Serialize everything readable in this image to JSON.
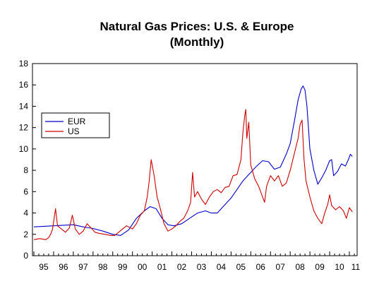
{
  "chart_data": {
    "type": "line",
    "title": "Natural Gas Prices: U.S. & Europe",
    "subtitle": "(Monthly)",
    "xlabel": "",
    "ylabel": "",
    "ylim": [
      0,
      18
    ],
    "yticks": [
      "0",
      "2",
      "4",
      "6",
      "8",
      "10",
      "12",
      "14",
      "16",
      "18"
    ],
    "xlim": [
      1995.0,
      2011.25
    ],
    "xticks": [
      "95",
      "96",
      "97",
      "98",
      "99",
      "00",
      "01",
      "02",
      "03",
      "04",
      "05",
      "06",
      "07",
      "08",
      "09",
      "10",
      "11"
    ],
    "legend_position": "left",
    "grid": false,
    "series": [
      {
        "name": "EUR",
        "color": "#0000cc",
        "x": [
          1995.0,
          1995.5,
          1996.0,
          1996.5,
          1997.0,
          1997.5,
          1998.0,
          1998.5,
          1999.0,
          1999.4,
          1999.8,
          2000.2,
          2000.6,
          2000.9,
          2001.2,
          2001.5,
          2001.8,
          2002.1,
          2002.5,
          2002.9,
          2003.3,
          2003.7,
          2004.0,
          2004.3,
          2004.6,
          2005.0,
          2005.3,
          2005.6,
          2006.0,
          2006.3,
          2006.6,
          2006.9,
          2007.2,
          2007.5,
          2007.8,
          2008.0,
          2008.2,
          2008.4,
          2008.55,
          2008.65,
          2008.75,
          2008.85,
          2009.0,
          2009.2,
          2009.4,
          2009.6,
          2009.8,
          2010.0,
          2010.1,
          2010.2,
          2010.4,
          2010.6,
          2010.8,
          2010.95,
          2011.05,
          2011.15
        ],
        "y": [
          2.7,
          2.75,
          2.8,
          2.85,
          2.9,
          2.7,
          2.55,
          2.3,
          2.0,
          1.9,
          2.4,
          3.5,
          4.2,
          4.6,
          4.4,
          3.5,
          2.9,
          2.8,
          3.0,
          3.5,
          4.0,
          4.2,
          4.0,
          4.0,
          4.6,
          5.4,
          6.2,
          7.0,
          7.8,
          8.4,
          8.9,
          8.8,
          8.1,
          8.3,
          9.5,
          10.5,
          12.5,
          14.6,
          15.6,
          15.9,
          15.5,
          14.0,
          10.0,
          8.0,
          6.7,
          7.3,
          8.0,
          8.9,
          9.0,
          7.5,
          7.9,
          8.6,
          8.4,
          9.0,
          9.5,
          9.3
        ]
      },
      {
        "name": "US",
        "color": "#cc0000",
        "x": [
          1995.0,
          1995.3,
          1995.6,
          1995.75,
          1995.85,
          1995.95,
          1996.1,
          1996.2,
          1996.4,
          1996.6,
          1996.8,
          1996.95,
          1997.1,
          1997.3,
          1997.5,
          1997.7,
          1997.9,
          1998.1,
          1998.3,
          1998.6,
          1998.9,
          1999.1,
          1999.3,
          1999.5,
          1999.7,
          2000.0,
          2000.2,
          2000.4,
          2000.6,
          2000.75,
          2000.85,
          2000.95,
          2001.1,
          2001.25,
          2001.4,
          2001.6,
          2001.8,
          2002.0,
          2002.2,
          2002.4,
          2002.6,
          2002.8,
          2002.95,
          2003.05,
          2003.15,
          2003.3,
          2003.5,
          2003.7,
          2003.9,
          2004.1,
          2004.3,
          2004.5,
          2004.7,
          2004.9,
          2005.1,
          2005.3,
          2005.5,
          2005.6,
          2005.7,
          2005.75,
          2005.8,
          2005.9,
          2006.0,
          2006.2,
          2006.4,
          2006.6,
          2006.7,
          2006.8,
          2007.0,
          2007.2,
          2007.4,
          2007.6,
          2007.8,
          2008.0,
          2008.2,
          2008.4,
          2008.5,
          2008.6,
          2008.7,
          2008.8,
          2009.0,
          2009.2,
          2009.4,
          2009.6,
          2009.75,
          2009.9,
          2010.0,
          2010.1,
          2010.3,
          2010.5,
          2010.7,
          2010.85,
          2011.0,
          2011.15
        ],
        "y": [
          1.5,
          1.6,
          1.5,
          1.7,
          2.0,
          2.5,
          4.4,
          2.8,
          2.5,
          2.2,
          2.6,
          3.8,
          2.5,
          2.0,
          2.3,
          3.0,
          2.6,
          2.2,
          2.1,
          2.0,
          1.9,
          1.9,
          2.2,
          2.5,
          2.8,
          2.5,
          3.0,
          3.8,
          4.2,
          5.5,
          7.0,
          9.0,
          7.5,
          5.5,
          4.5,
          3.0,
          2.3,
          2.5,
          2.8,
          3.2,
          3.5,
          4.2,
          5.0,
          7.8,
          5.5,
          6.0,
          5.3,
          4.8,
          5.5,
          6.0,
          6.2,
          5.9,
          6.4,
          6.5,
          7.5,
          7.6,
          9.0,
          11.5,
          13.2,
          13.7,
          11.0,
          12.5,
          8.5,
          7.2,
          6.5,
          5.5,
          5.0,
          6.5,
          7.5,
          7.0,
          7.5,
          6.5,
          6.8,
          8.0,
          9.5,
          11.0,
          12.3,
          12.7,
          9.0,
          7.0,
          5.5,
          4.2,
          3.5,
          3.0,
          4.0,
          4.8,
          5.7,
          4.7,
          4.3,
          4.6,
          4.2,
          3.5,
          4.5,
          4.1
        ]
      }
    ]
  }
}
